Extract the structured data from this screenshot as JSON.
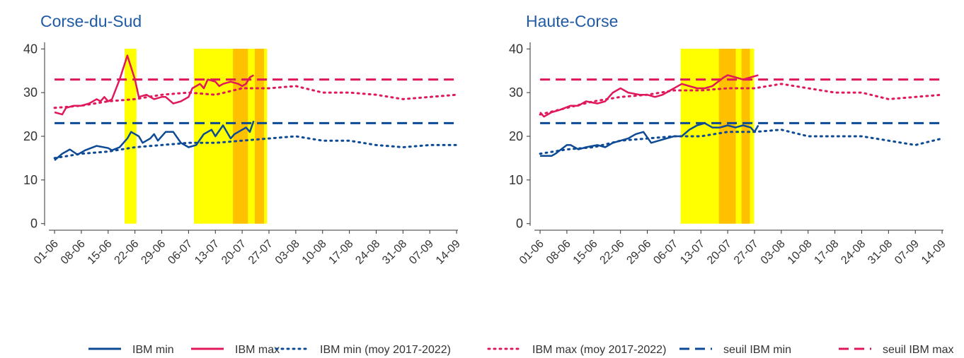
{
  "chart_data": [
    {
      "type": "line",
      "title": "Corse-du-Sud",
      "xlim": [
        -2.6,
        107.2
      ],
      "ylim": [
        -1.5,
        41.5
      ],
      "yticks": [
        0,
        10,
        20,
        30,
        40
      ],
      "xticks": [
        {
          "value": 0,
          "label": "01-06"
        },
        {
          "value": 7,
          "label": "08-06"
        },
        {
          "value": 14,
          "label": "15-06"
        },
        {
          "value": 21,
          "label": "22-06"
        },
        {
          "value": 28,
          "label": "29-06"
        },
        {
          "value": 35,
          "label": "06-07"
        },
        {
          "value": 42,
          "label": "13-07"
        },
        {
          "value": 49,
          "label": "20-07"
        },
        {
          "value": 56,
          "label": "27-07"
        },
        {
          "value": 63,
          "label": "03-08"
        },
        {
          "value": 70,
          "label": "10-08"
        },
        {
          "value": 77,
          "label": "17-08"
        },
        {
          "value": 84,
          "label": "24-08"
        },
        {
          "value": 91,
          "label": "31-08"
        },
        {
          "value": 98,
          "label": "07-09"
        },
        {
          "value": 105,
          "label": "14-09"
        }
      ],
      "spans": [
        {
          "from": 18.3,
          "to": 21.4,
          "color": "#ffff00"
        },
        {
          "from": 36.4,
          "to": 55.5,
          "color": "#ffff00"
        },
        {
          "from": 46.6,
          "to": 50.5,
          "color": "#ffc000"
        },
        {
          "from": 52.3,
          "to": 54.7,
          "color": "#ffc000"
        }
      ],
      "series": [
        {
          "name": "IBM min",
          "color": "#0d4a96",
          "style": "solid",
          "x": [
            0,
            2,
            4,
            6,
            8,
            11,
            14,
            15,
            17,
            19,
            20,
            22,
            23,
            25,
            26,
            27,
            29,
            31,
            33,
            35,
            37,
            39,
            41,
            42,
            44,
            46,
            47,
            48,
            50,
            51,
            52
          ],
          "values": [
            14.5,
            16,
            17,
            15.8,
            16.8,
            17.8,
            17.3,
            16.8,
            17.5,
            19.5,
            21,
            20,
            18.5,
            19.5,
            20.5,
            19,
            21,
            21,
            18.5,
            17.5,
            18,
            20.5,
            21.5,
            20,
            22.5,
            19.5,
            20.5,
            21,
            22,
            21,
            23.5
          ]
        },
        {
          "name": "IBM max",
          "color": "#e0185a",
          "style": "solid",
          "x": [
            0,
            2,
            3,
            5,
            7,
            9,
            11,
            12,
            13,
            14,
            15,
            17,
            19,
            21,
            22,
            24,
            26,
            28,
            29,
            31,
            33,
            35,
            36,
            38,
            39,
            40,
            42,
            43,
            44,
            46,
            48,
            49,
            50,
            51,
            52
          ],
          "values": [
            25.5,
            25,
            26.5,
            27,
            27,
            27.5,
            28.5,
            28,
            29,
            28,
            28.5,
            33,
            38.5,
            33,
            29,
            29.5,
            28.5,
            29,
            29,
            27.5,
            28,
            29,
            31,
            32,
            31,
            33,
            32.5,
            31.5,
            32,
            32.5,
            32,
            31.5,
            32,
            33.5,
            34
          ]
        },
        {
          "name": "IBM min (moy 2017-2022)",
          "color": "#0d4a96",
          "style": "dot",
          "x": [
            0,
            7,
            14,
            21,
            28,
            35,
            42,
            49,
            56,
            63,
            70,
            77,
            84,
            91,
            98,
            105
          ],
          "values": [
            15,
            16,
            16.5,
            17.5,
            18,
            18.5,
            18.5,
            19,
            19.5,
            20,
            19,
            19,
            18,
            17.5,
            18,
            18
          ]
        },
        {
          "name": "IBM max (moy 2017-2022)",
          "color": "#e0185a",
          "style": "dot",
          "x": [
            0,
            7,
            14,
            21,
            28,
            35,
            42,
            49,
            56,
            63,
            70,
            77,
            84,
            91,
            98,
            105
          ],
          "values": [
            26.5,
            27,
            28,
            28.5,
            29.5,
            30,
            29.5,
            31,
            31,
            31.5,
            30,
            30,
            29.5,
            28.5,
            29,
            29.5
          ]
        },
        {
          "name": "seuil IBM min",
          "color": "#0d4a96",
          "style": "dash",
          "x": [
            0,
            105
          ],
          "values": [
            23,
            23
          ]
        },
        {
          "name": "seuil IBM max",
          "color": "#e0185a",
          "style": "dash",
          "x": [
            0,
            105
          ],
          "values": [
            33,
            33
          ]
        }
      ]
    },
    {
      "type": "line",
      "title": "Haute-Corse",
      "xlim": [
        -2.6,
        107.2
      ],
      "ylim": [
        -1.5,
        41.5
      ],
      "yticks": [
        0,
        10,
        20,
        30,
        40
      ],
      "xticks": [
        {
          "value": 0,
          "label": "01-06"
        },
        {
          "value": 7,
          "label": "08-06"
        },
        {
          "value": 14,
          "label": "15-06"
        },
        {
          "value": 21,
          "label": "22-06"
        },
        {
          "value": 28,
          "label": "29-06"
        },
        {
          "value": 35,
          "label": "06-07"
        },
        {
          "value": 42,
          "label": "13-07"
        },
        {
          "value": 49,
          "label": "20-07"
        },
        {
          "value": 56,
          "label": "27-07"
        },
        {
          "value": 63,
          "label": "03-08"
        },
        {
          "value": 70,
          "label": "10-08"
        },
        {
          "value": 77,
          "label": "17-08"
        },
        {
          "value": 84,
          "label": "24-08"
        },
        {
          "value": 91,
          "label": "31-08"
        },
        {
          "value": 98,
          "label": "07-09"
        },
        {
          "value": 105,
          "label": "14-09"
        }
      ],
      "spans": [
        {
          "from": 36.7,
          "to": 55.9,
          "color": "#ffff00"
        },
        {
          "from": 46.7,
          "to": 51.1,
          "color": "#ffc000"
        },
        {
          "from": 52.6,
          "to": 54.8,
          "color": "#ffc000"
        }
      ],
      "series": [
        {
          "name": "IBM min",
          "color": "#0d4a96",
          "style": "solid",
          "x": [
            0,
            3,
            4,
            7,
            8,
            10,
            12,
            15,
            17,
            19,
            21,
            23,
            25,
            27,
            29,
            31,
            33,
            35,
            37,
            39,
            41,
            43,
            45,
            47,
            49,
            51,
            53,
            55,
            56,
            57
          ],
          "values": [
            15.5,
            15.5,
            16,
            18,
            18,
            17,
            17.5,
            18,
            17.5,
            18.5,
            19,
            19.5,
            20.5,
            21,
            18.5,
            19,
            19.5,
            20,
            20,
            21.5,
            22.5,
            23,
            22,
            22,
            22.5,
            22,
            22.5,
            22,
            21,
            22.5
          ]
        },
        {
          "name": "IBM max",
          "color": "#e0185a",
          "style": "solid",
          "x": [
            0,
            1,
            3,
            5,
            8,
            10,
            12,
            15,
            17,
            19,
            21,
            23,
            26,
            28,
            30,
            32,
            34,
            37,
            39,
            41,
            43,
            45,
            48,
            49,
            51,
            53,
            55,
            57
          ],
          "values": [
            25.5,
            24.5,
            25.5,
            26,
            27,
            27,
            28,
            27.5,
            28,
            30,
            31,
            30,
            29.5,
            29.5,
            29,
            29.5,
            30.5,
            32,
            31.5,
            31,
            31,
            31.5,
            33.5,
            34,
            33.5,
            33,
            33.5,
            34
          ]
        },
        {
          "name": "IBM min (moy 2017-2022)",
          "color": "#0d4a96",
          "style": "dot",
          "x": [
            0,
            7,
            14,
            21,
            28,
            35,
            42,
            49,
            56,
            63,
            70,
            77,
            84,
            91,
            98,
            105
          ],
          "values": [
            16,
            17,
            17.5,
            19,
            19.5,
            20,
            20,
            21,
            21,
            21.5,
            20,
            20,
            20,
            19,
            18,
            19.5
          ]
        },
        {
          "name": "IBM max (moy 2017-2022)",
          "color": "#e0185a",
          "style": "dot",
          "x": [
            0,
            7,
            14,
            21,
            28,
            35,
            42,
            49,
            56,
            63,
            70,
            77,
            84,
            91,
            98,
            105
          ],
          "values": [
            25,
            26.5,
            28,
            29,
            29.5,
            30.5,
            30.5,
            31,
            31,
            32,
            31,
            30,
            30,
            28.5,
            29,
            29.5
          ]
        },
        {
          "name": "seuil IBM min",
          "color": "#0d4a96",
          "style": "dash",
          "x": [
            0,
            105
          ],
          "values": [
            23,
            23
          ]
        },
        {
          "name": "seuil IBM max",
          "color": "#e0185a",
          "style": "dash",
          "x": [
            0,
            105
          ],
          "values": [
            33,
            33
          ]
        }
      ]
    }
  ]
}
